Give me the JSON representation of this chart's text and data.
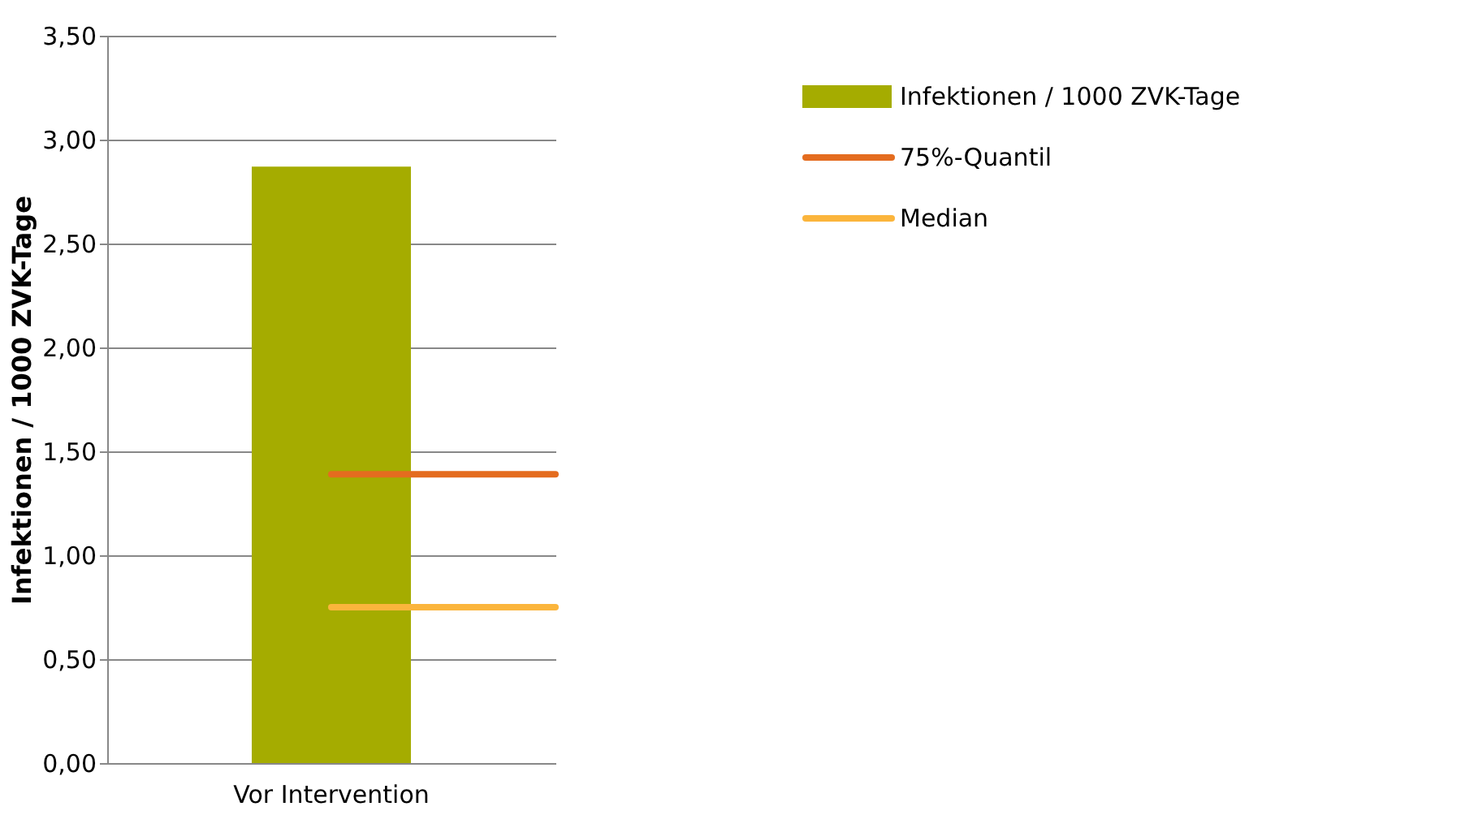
{
  "chart_data": {
    "type": "bar",
    "categories": [
      "Vor Intervention"
    ],
    "ylabel": "Infektionen / 1000 ZVK-Tage",
    "series": [
      {
        "name": "Infektionen / 1000 ZVK-Tage",
        "color": "#a5ac00",
        "values": [
          2.87
        ]
      }
    ],
    "ref_lines": [
      {
        "axis": "y",
        "value": 1.39,
        "label": "75%-Quantil",
        "color": "#e46c1f"
      },
      {
        "axis": "y",
        "value": 0.75,
        "label": "Median",
        "color": "#fbb53c"
      }
    ],
    "ylim": [
      0,
      3.5
    ],
    "yticks": [
      {
        "value": 0,
        "label": "0,00"
      },
      {
        "value": 0.5,
        "label": "0,50"
      },
      {
        "value": 1,
        "label": "1,00"
      },
      {
        "value": 1.5,
        "label": "1,50"
      },
      {
        "value": 2,
        "label": "2,00"
      },
      {
        "value": 2.5,
        "label": "2,50"
      },
      {
        "value": 3,
        "label": "3,00"
      },
      {
        "value": 3.5,
        "label": "3,50"
      }
    ],
    "grid": "y",
    "legend": "right"
  }
}
